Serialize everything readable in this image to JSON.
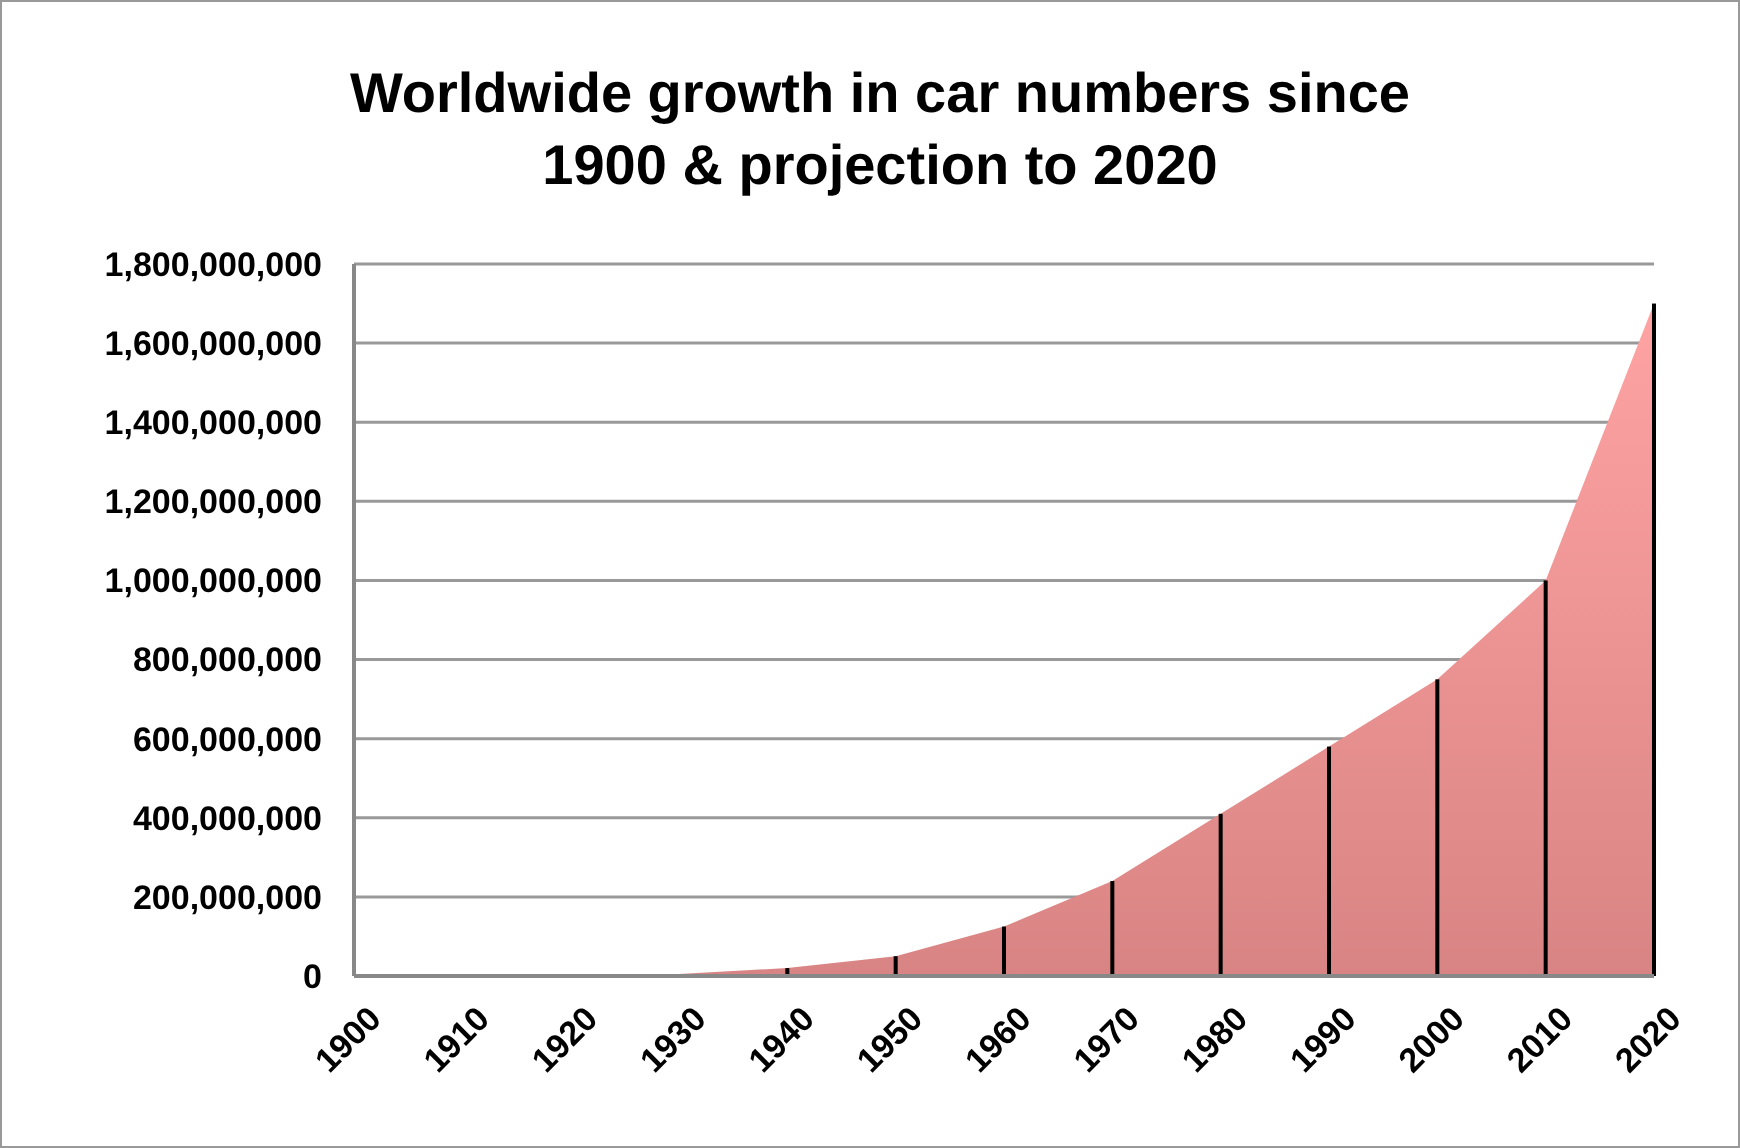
{
  "chart_data": {
    "type": "area",
    "title": "Worldwide growth in car numbers since 1900 & projection to 2020",
    "x": [
      1900,
      1910,
      1920,
      1930,
      1940,
      1950,
      1960,
      1970,
      1980,
      1990,
      2000,
      2010,
      2020
    ],
    "series": [
      {
        "color": "#d98484",
        "values": [
          0,
          0,
          0,
          5000000,
          20000000,
          50000000,
          125000000,
          240000000,
          410000000,
          580000000,
          750000000,
          1000000000,
          1700000000
        ]
      },
      {
        "type": "bar",
        "color": "#000000",
        "values": [
          0,
          0,
          0,
          null,
          20000000,
          50000000,
          125000000,
          240000000,
          410000000,
          580000000,
          750000000,
          1000000000,
          1700000000
        ]
      }
    ],
    "xlim": [
      1900,
      2020
    ],
    "xticks": [
      1900,
      1910,
      1920,
      1930,
      1940,
      1950,
      1960,
      1970,
      1980,
      1990,
      2000,
      2010,
      2020
    ],
    "ylim": [
      0,
      1800000000
    ],
    "yticks": [
      {
        "value": 0,
        "label": "0"
      },
      {
        "value": 200000000,
        "label": "200,000,000"
      },
      {
        "value": 400000000,
        "label": "400,000,000"
      },
      {
        "value": 600000000,
        "label": "600,000,000"
      },
      {
        "value": 800000000,
        "label": "800,000,000"
      },
      {
        "value": 1000000000,
        "label": "1,000,000,000"
      },
      {
        "value": 1200000000,
        "label": "1,200,000,000"
      },
      {
        "value": 1400000000,
        "label": "1,400,000,000"
      },
      {
        "value": 1600000000,
        "label": "1,600,000,000"
      },
      {
        "value": 1800000000,
        "label": "1,800,000,000"
      }
    ],
    "grid": "y"
  }
}
